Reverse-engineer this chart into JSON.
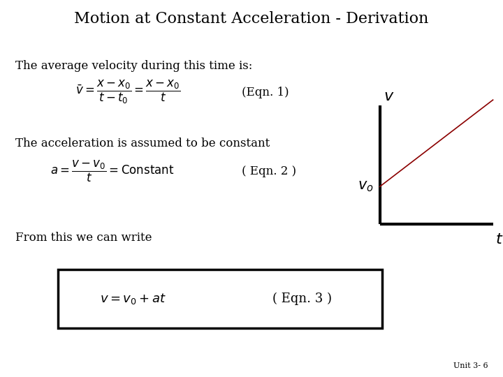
{
  "title": "Motion at Constant Acceleration - Derivation",
  "title_fontsize": 16,
  "text_color": "#000000",
  "line1": "The average velocity during this time is:",
  "eqn1_latex": "$\\bar{v}=\\dfrac{x-x_0}{t-t_0}=\\dfrac{x-x_0}{t}$",
  "eqn1_label": "(Eqn. 1)",
  "line2": "The acceleration is assumed to be constant",
  "eqn2_latex": "$a=\\dfrac{v-v_0}{t}=\\mathrm{Constant}$",
  "eqn2_label": "( Eqn. 2 )",
  "line3": "From this we can write",
  "eqn3_latex": "$v=v_0+at$",
  "eqn3_label": "( Eqn. 3 )",
  "footer": "Unit 3- 6",
  "graph_v_label": "$v$",
  "graph_vo_label": "$v_o$",
  "graph_t_label": "$t$",
  "text_fontsize": 12,
  "eqn_fontsize": 12,
  "eqn3_fontsize": 13,
  "graph_label_fontsize": 14
}
